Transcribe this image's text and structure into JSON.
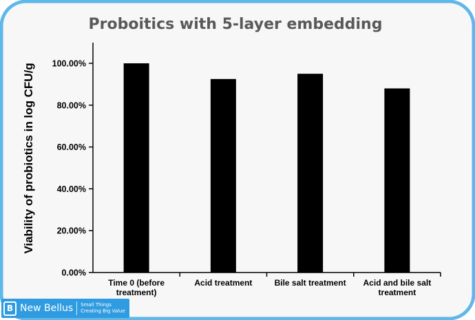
{
  "colors": {
    "frame": "#5fb8ea",
    "background": "#f7f7f7",
    "bar": "#000000",
    "title": "#595959",
    "logo": "#2f9be0"
  },
  "logo": {
    "name": "New Bellus",
    "mark": "B",
    "tagline_line1": "Small Things",
    "tagline_line2": "Creating Big Value"
  },
  "chart_data": {
    "type": "bar",
    "title": "Proboitics with 5-layer embedding",
    "xlabel": "",
    "ylabel": "Viability of probiotics in log CFU/g",
    "categories": [
      [
        "Time 0 (before",
        "treatment)"
      ],
      [
        "Acid treatment"
      ],
      [
        "Bile salt treatment"
      ],
      [
        "Acid and bile salt",
        "treatment"
      ]
    ],
    "values": [
      100,
      92.5,
      95,
      88
    ],
    "ylim": [
      0,
      100
    ],
    "yticks": [
      0,
      20,
      40,
      60,
      80,
      100
    ],
    "ytick_labels": [
      "0.00%",
      "20.00%",
      "40.00%",
      "60.00%",
      "80.00%",
      "100.00%"
    ],
    "grid": false,
    "legend": "none"
  }
}
